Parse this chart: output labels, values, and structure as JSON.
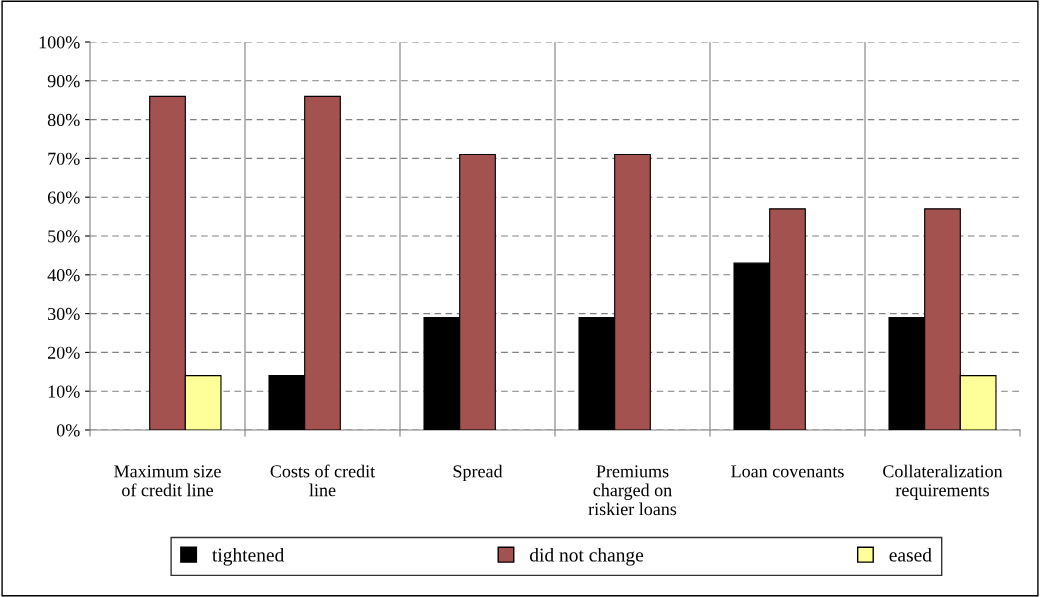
{
  "chart_data": {
    "type": "bar",
    "categories": [
      "Maximum size\nof credit line",
      "Costs of credit\nline",
      "Spread",
      "Premiums\ncharged on\nriskier loans",
      "Loan covenants",
      "Collateralization\nrequirements"
    ],
    "series": [
      {
        "name": "tightened",
        "color": "#000000",
        "values": [
          null,
          14,
          29,
          29,
          43,
          29
        ]
      },
      {
        "name": "did not change",
        "color": "#a3524f",
        "values": [
          86,
          86,
          71,
          71,
          57,
          57
        ]
      },
      {
        "name": "eased",
        "color": "#ffff99",
        "values": [
          14,
          null,
          null,
          null,
          null,
          14
        ]
      }
    ],
    "ylim": [
      0,
      100
    ],
    "yticks": [
      {
        "value": 0,
        "label": "0%"
      },
      {
        "value": 10,
        "label": "10%"
      },
      {
        "value": 20,
        "label": "20%"
      },
      {
        "value": 30,
        "label": "30%"
      },
      {
        "value": 40,
        "label": "40%"
      },
      {
        "value": 50,
        "label": "50%"
      },
      {
        "value": 60,
        "label": "60%"
      },
      {
        "value": 70,
        "label": "70%"
      },
      {
        "value": 80,
        "label": "80%"
      },
      {
        "value": 90,
        "label": "90%"
      },
      {
        "value": 100,
        "label": "100%"
      }
    ],
    "grid": true,
    "legend": "bottom"
  }
}
